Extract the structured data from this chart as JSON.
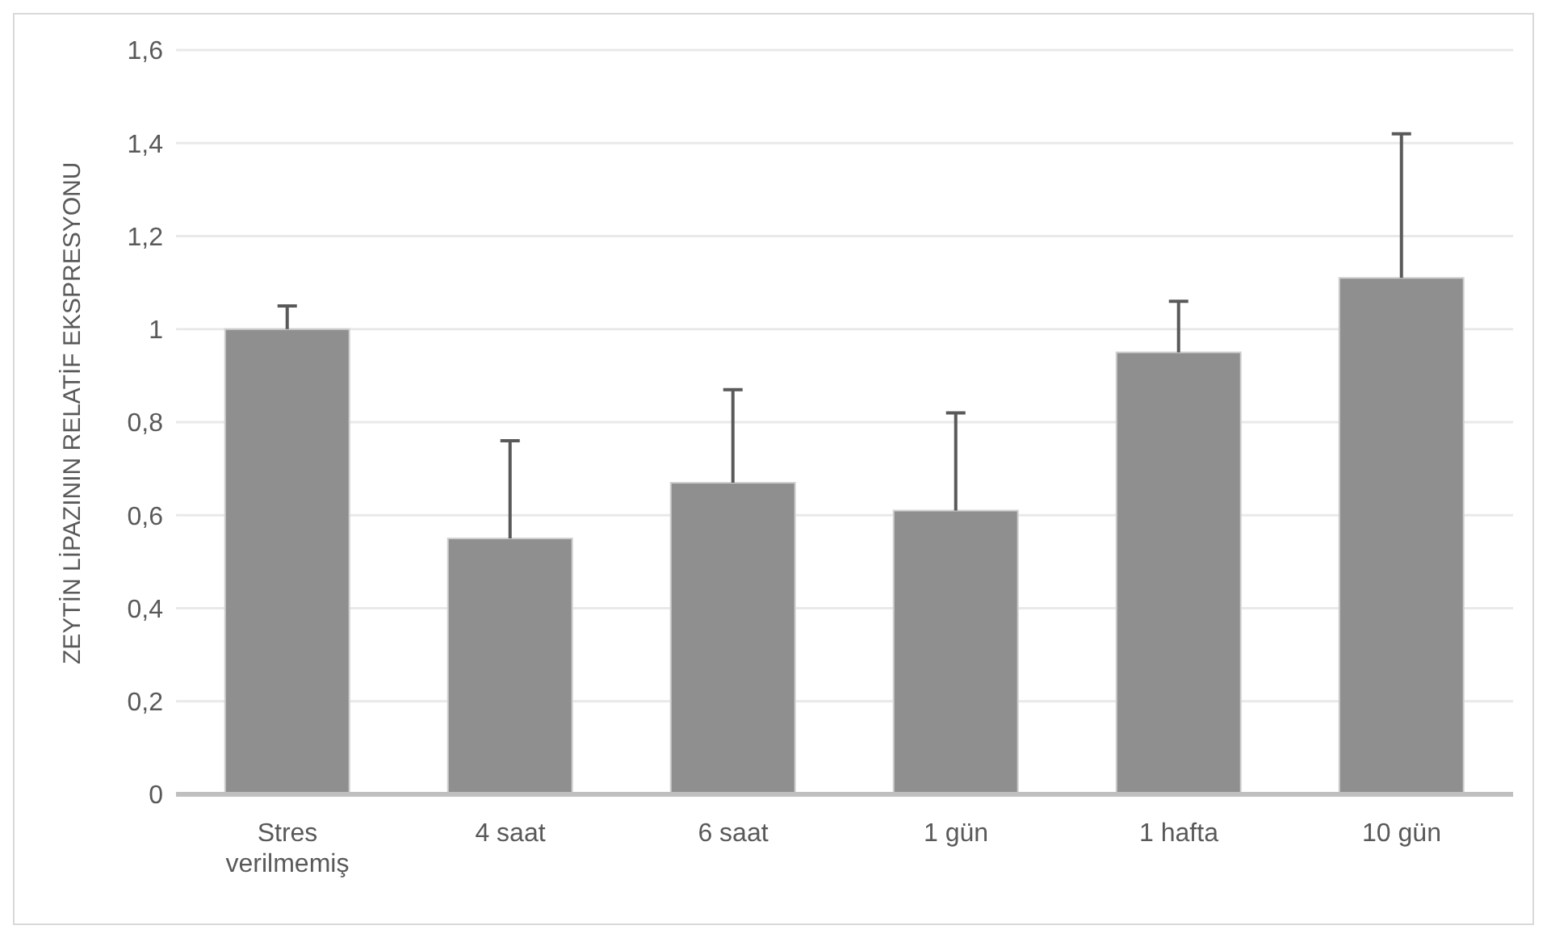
{
  "chart_data": {
    "type": "bar",
    "ylabel": "ZEYTİN LİPAZININ RELATİF EKSPRESYONU",
    "categories": [
      "Stres verilmemiş",
      "4 saat",
      "6 saat",
      "1 gün",
      "1 hafta",
      "10 gün"
    ],
    "values": [
      1.0,
      0.55,
      0.67,
      0.61,
      0.95,
      1.11
    ],
    "errors": [
      [
        1.0,
        1.05
      ],
      [
        0.55,
        0.76
      ],
      [
        0.67,
        0.87
      ],
      [
        0.61,
        0.82
      ],
      [
        0.95,
        1.06
      ],
      [
        1.11,
        1.42
      ]
    ],
    "color": "#8f8f8f",
    "ylim": [
      0,
      1.6
    ],
    "yticks": [
      0,
      {
        "value": 0.2,
        "label": "0,2"
      },
      {
        "value": 0.4,
        "label": "0,4"
      },
      {
        "value": 0.6,
        "label": "0,6"
      },
      {
        "value": 0.8,
        "label": "0,8"
      },
      1,
      {
        "value": 1.2,
        "label": "1,2"
      },
      {
        "value": 1.4,
        "label": "1,4"
      },
      {
        "value": 1.6,
        "label": "1,6"
      }
    ],
    "grid": "y"
  }
}
